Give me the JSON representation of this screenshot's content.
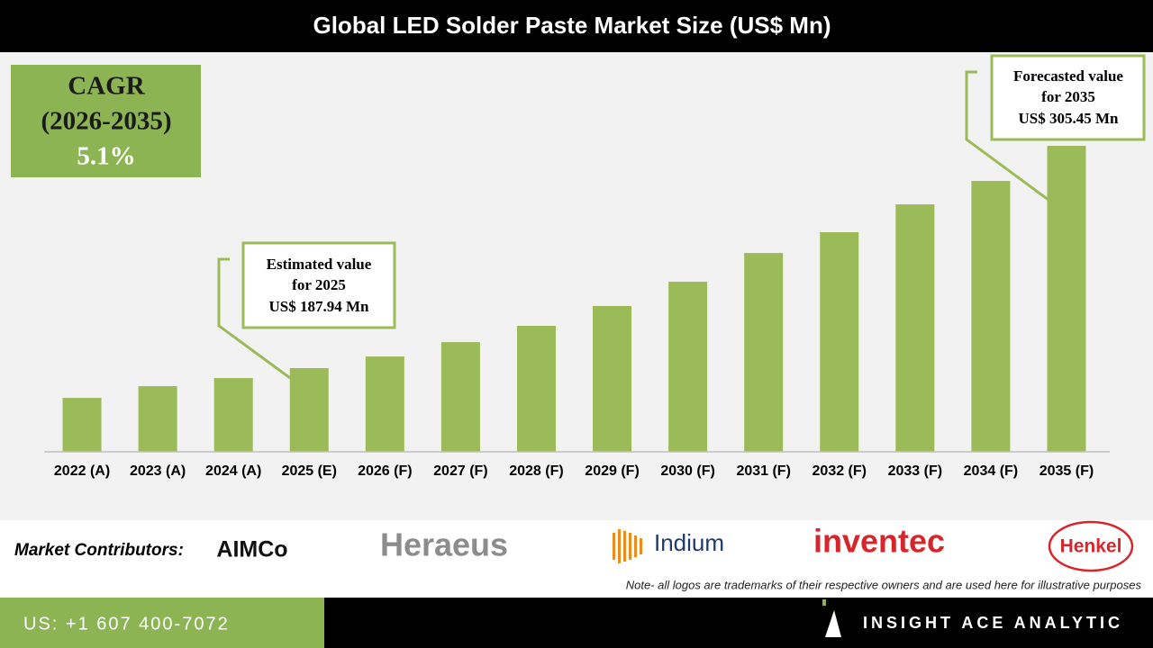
{
  "header": {
    "title": "Global LED Solder Paste Market Size (US$ Mn)"
  },
  "chart_data": {
    "type": "bar",
    "categories": [
      "2022 (A)",
      "2023 (A)",
      "2024 (A)",
      "2025 (E)",
      "2026 (F)",
      "2027 (F)",
      "2028 (F)",
      "2029 (F)",
      "2030 (F)",
      "2031 (F)",
      "2032 (F)",
      "2033 (F)",
      "2034 (F)",
      "2035 (F)"
    ],
    "values": [
      172.2,
      178.4,
      182.7,
      187.94,
      194.1,
      201.7,
      210.3,
      220.8,
      233.6,
      248.8,
      259.8,
      274.5,
      286.9,
      305.45
    ],
    "color": "#9bbb59",
    "ylim": [
      143.7,
      354
    ],
    "annotations": {
      "cagr": [
        "CAGR",
        "(2026-2035)",
        "5.1%"
      ],
      "estimated": [
        "Estimated value",
        "for 2025",
        "US$ 187.94 Mn"
      ],
      "forecasted": [
        "Forecasted value",
        "for 2035",
        "US$ 305.45 Mn"
      ]
    }
  },
  "footer": {
    "contributors_label": "Market Contributors:",
    "logos": [
      "AIMCo",
      "Heraeus",
      "Indium",
      "inventec",
      "Henkel"
    ],
    "note": "Note- all logos are trademarks of their respective owners and are used here for illustrative purposes",
    "phone": "US: +1 607 400-7072",
    "brand": "INSIGHT ACE ANALYTIC"
  }
}
